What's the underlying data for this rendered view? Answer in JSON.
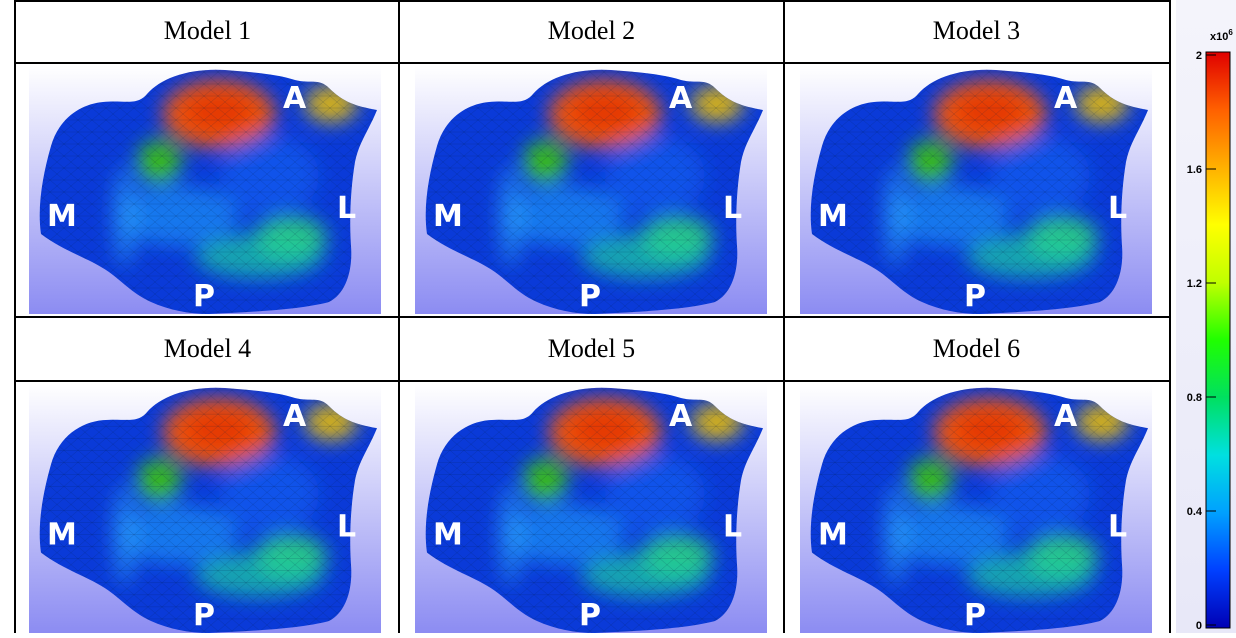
{
  "panels": [
    {
      "title": "Model 1",
      "labels": {
        "anterior": "A",
        "medial": "M",
        "lateral": "L",
        "posterior": "P"
      }
    },
    {
      "title": "Model 2",
      "labels": {
        "anterior": "A",
        "medial": "M",
        "lateral": "L",
        "posterior": "P"
      }
    },
    {
      "title": "Model 3",
      "labels": {
        "anterior": "A",
        "medial": "M",
        "lateral": "L",
        "posterior": "P"
      }
    },
    {
      "title": "Model 4",
      "labels": {
        "anterior": "A",
        "medial": "M",
        "lateral": "L",
        "posterior": "P"
      }
    },
    {
      "title": "Model 5",
      "labels": {
        "anterior": "A",
        "medial": "M",
        "lateral": "L",
        "posterior": "P"
      }
    },
    {
      "title": "Model 6",
      "labels": {
        "anterior": "A",
        "medial": "M",
        "lateral": "L",
        "posterior": "P"
      }
    }
  ],
  "colorbar": {
    "exponent_label": "x10",
    "exponent_power": "6",
    "ticks": [
      "2",
      "1.6",
      "1.2",
      "0.8",
      "0.4",
      "0"
    ],
    "colormap": [
      "#0000b4",
      "#0040ff",
      "#00a0ff",
      "#00e0e0",
      "#00e060",
      "#20ff00",
      "#c0ff00",
      "#ffff00",
      "#ffb000",
      "#ff6000",
      "#e00000"
    ]
  }
}
